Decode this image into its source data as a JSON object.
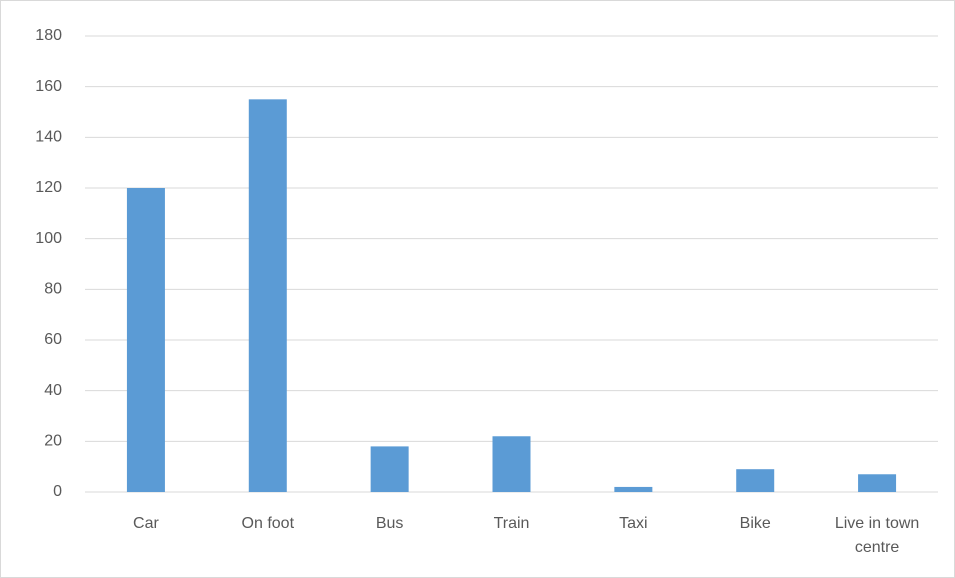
{
  "chart_data": {
    "type": "bar",
    "categories": [
      "Car",
      "On foot",
      "Bus",
      "Train",
      "Taxi",
      "Bike",
      "Live in town centre"
    ],
    "values": [
      120,
      155,
      18,
      22,
      2,
      9,
      7
    ],
    "color": "#5b9bd5",
    "ylim": [
      0,
      180
    ],
    "yticks": [
      0,
      20,
      40,
      60,
      80,
      100,
      120,
      140,
      160,
      180
    ],
    "grid": true
  }
}
